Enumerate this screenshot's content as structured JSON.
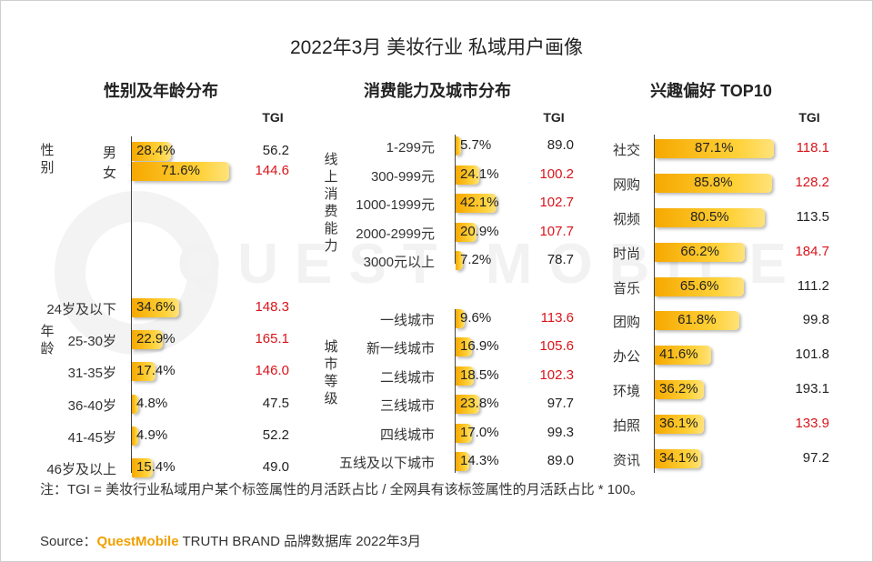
{
  "title": "2022年3月 美妆行业 私域用户画像",
  "tgi_label": "TGI",
  "colors": {
    "bar_start": "#f6a800",
    "bar_end": "#ffe27a",
    "tgi_high": "#d9141a",
    "tgi_normal": "#222222"
  },
  "chart_data": [
    {
      "type": "bar",
      "title": "性别及年龄分布",
      "groups": [
        {
          "label": "性别",
          "categories": [
            "男",
            "女"
          ],
          "values": [
            28.4,
            71.6
          ],
          "tgi": [
            56.2,
            144.6
          ],
          "tgi_highlight": [
            false,
            true
          ]
        },
        {
          "label": "年龄",
          "categories": [
            "24岁及以下",
            "25-30岁",
            "31-35岁",
            "36-40岁",
            "41-45岁",
            "46岁及以上"
          ],
          "values": [
            34.6,
            22.9,
            17.4,
            4.8,
            4.9,
            15.4
          ],
          "tgi": [
            148.3,
            165.1,
            146.0,
            47.5,
            52.2,
            49.0
          ],
          "tgi_highlight": [
            true,
            true,
            true,
            false,
            false,
            false
          ]
        }
      ],
      "unit": "%"
    },
    {
      "type": "bar",
      "title": "消费能力及城市分布",
      "groups": [
        {
          "label": "线上消费能力",
          "categories": [
            "1-299元",
            "300-999元",
            "1000-1999元",
            "2000-2999元",
            "3000元以上"
          ],
          "values": [
            5.7,
            24.1,
            42.1,
            20.9,
            7.2
          ],
          "tgi": [
            89.0,
            100.2,
            102.7,
            107.7,
            78.7
          ],
          "tgi_highlight": [
            false,
            true,
            true,
            true,
            false
          ]
        },
        {
          "label": "城市等级",
          "categories": [
            "一线城市",
            "新一线城市",
            "二线城市",
            "三线城市",
            "四线城市",
            "五线及以下城市"
          ],
          "values": [
            9.6,
            16.9,
            18.5,
            23.8,
            17.0,
            14.3
          ],
          "tgi": [
            113.6,
            105.6,
            102.3,
            97.7,
            99.3,
            89.0
          ],
          "tgi_highlight": [
            true,
            true,
            true,
            false,
            false,
            false
          ]
        }
      ],
      "unit": "%"
    },
    {
      "type": "bar",
      "title": "兴趣偏好 TOP10",
      "groups": [
        {
          "label": "",
          "categories": [
            "社交",
            "网购",
            "视频",
            "时尚",
            "音乐",
            "团购",
            "办公",
            "环境",
            "拍照",
            "资讯"
          ],
          "values": [
            87.1,
            85.8,
            80.5,
            66.2,
            65.6,
            61.8,
            41.6,
            36.2,
            36.1,
            34.1
          ],
          "tgi": [
            118.1,
            128.2,
            113.5,
            184.7,
            111.2,
            99.8,
            101.8,
            193.1,
            133.9,
            97.2
          ],
          "tgi_highlight": [
            true,
            true,
            false,
            true,
            false,
            false,
            false,
            false,
            true,
            false
          ]
        }
      ],
      "unit": "%"
    }
  ],
  "note": "注：TGI = 美妆行业私域用户某个标签属性的月活跃占比 / 全网具有该标签属性的月活跃占比 * 100。",
  "source": {
    "prefix": "Source：",
    "brand": "QuestMobile",
    "suffix": " TRUTH BRAND 品牌数据库 2022年3月"
  },
  "watermark": "QUEST MOBILE"
}
